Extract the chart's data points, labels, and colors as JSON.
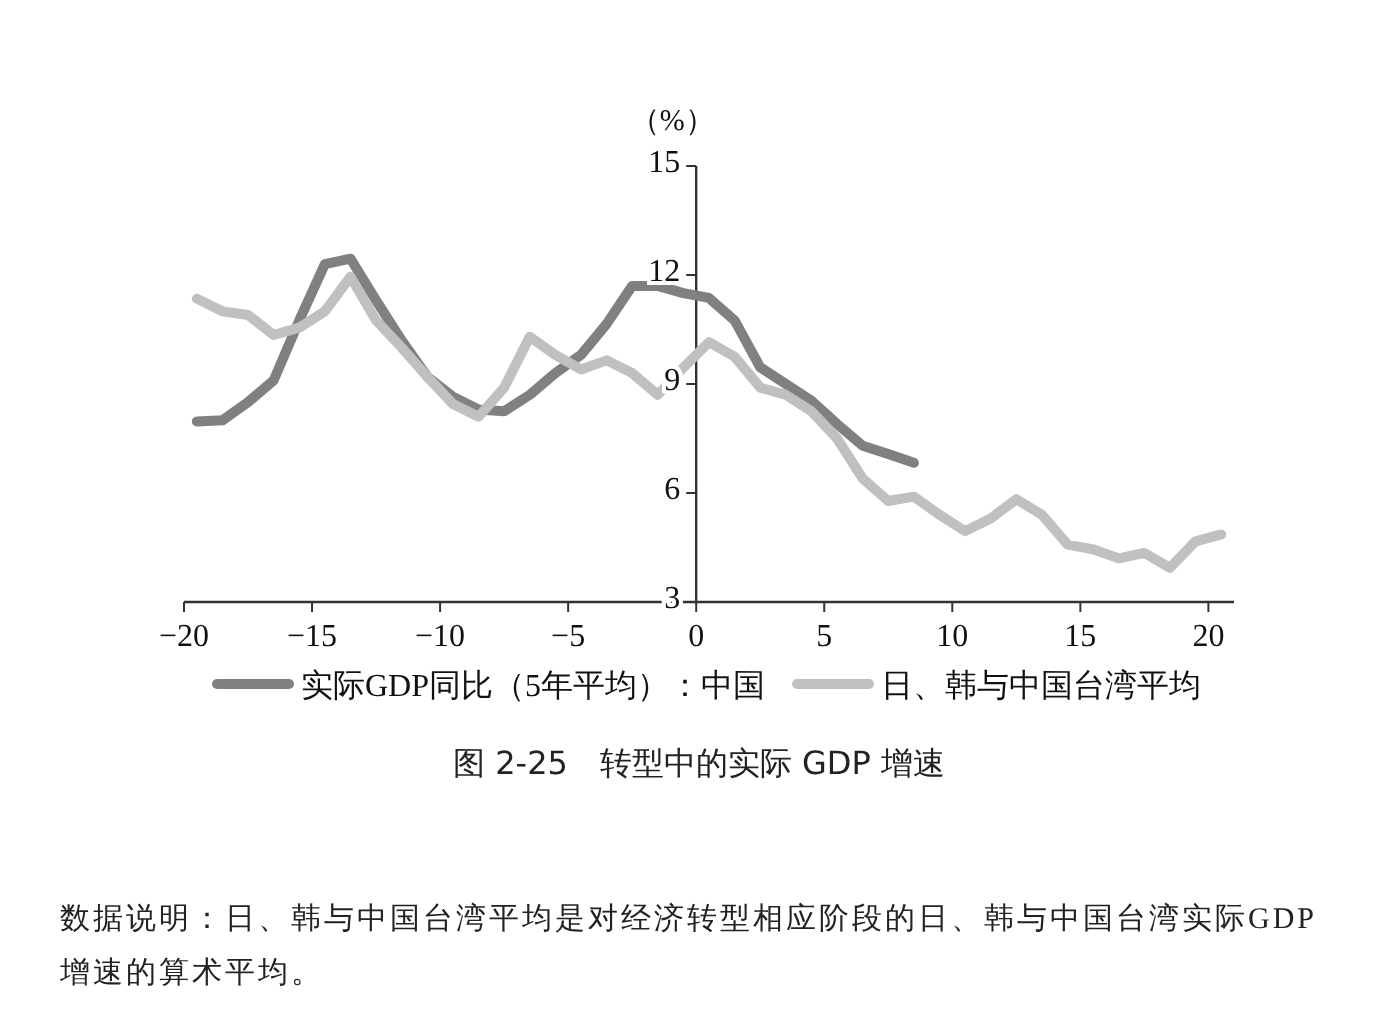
{
  "chart_data": {
    "type": "line",
    "ylabel": "（%）",
    "x": [
      -19.5,
      -18.5,
      -17.5,
      -16.5,
      -15.5,
      -14.5,
      -13.5,
      -12.5,
      -11.5,
      -10.5,
      -9.5,
      -8.5,
      -7.5,
      -6.5,
      -5.5,
      -4.5,
      -3.5,
      -2.5,
      -1.5,
      -0.5,
      0.5,
      1.5,
      2.5,
      3.5,
      4.5,
      5.5,
      6.5,
      7.5,
      8.5,
      9.5,
      10.5,
      11.5,
      12.5,
      13.5,
      14.5,
      15.5,
      16.5,
      17.5,
      18.5,
      19.5,
      20.5
    ],
    "series": [
      {
        "name": "实际GDP同比（5年平均）：中国",
        "color": "#808080",
        "values": [
          7.97,
          8.0,
          8.5,
          9.1,
          10.75,
          12.3,
          12.45,
          11.3,
          10.2,
          9.2,
          8.65,
          8.3,
          8.25,
          8.7,
          9.3,
          9.8,
          10.65,
          11.7,
          11.7,
          11.5,
          11.37,
          10.75,
          9.46,
          9.0,
          8.54,
          7.9,
          7.3,
          7.07,
          6.83,
          null,
          null,
          null,
          null,
          null,
          null,
          null,
          null,
          null,
          null,
          null,
          null
        ]
      },
      {
        "name": "日、韩与中国台湾平均",
        "color": "#c0c0c0",
        "values": [
          11.35,
          11.0,
          10.9,
          10.35,
          10.55,
          11.0,
          11.95,
          10.75,
          10.0,
          9.2,
          8.45,
          8.1,
          8.9,
          10.3,
          9.8,
          9.4,
          9.65,
          9.3,
          8.7,
          9.45,
          10.15,
          9.75,
          8.9,
          8.7,
          8.25,
          7.5,
          6.4,
          5.78,
          5.9,
          5.4,
          4.95,
          5.3,
          5.83,
          5.4,
          4.58,
          4.45,
          4.2,
          4.35,
          3.94,
          4.67,
          4.86
        ]
      }
    ],
    "xlim": [
      -20,
      21
    ],
    "xticks": [
      {
        "value": -20,
        "label": "−20"
      },
      {
        "value": -15,
        "label": "−15"
      },
      {
        "value": -10,
        "label": "−10"
      },
      {
        "value": -5,
        "label": "−5"
      },
      0,
      5,
      10,
      15,
      20
    ],
    "ylim": [
      3,
      15
    ],
    "yticks": [
      3,
      6,
      9,
      12,
      15
    ],
    "legend": "bottom",
    "grid": false,
    "marker": "none",
    "line_style": "solid",
    "annotations": [
      "图 2-25　转型中的实际 GDP 增速",
      "数据说明：日、韩与中国台湾平均是对经济转型相应阶段的日、韩与中国台湾实际GDP增速的算术平均。"
    ]
  }
}
